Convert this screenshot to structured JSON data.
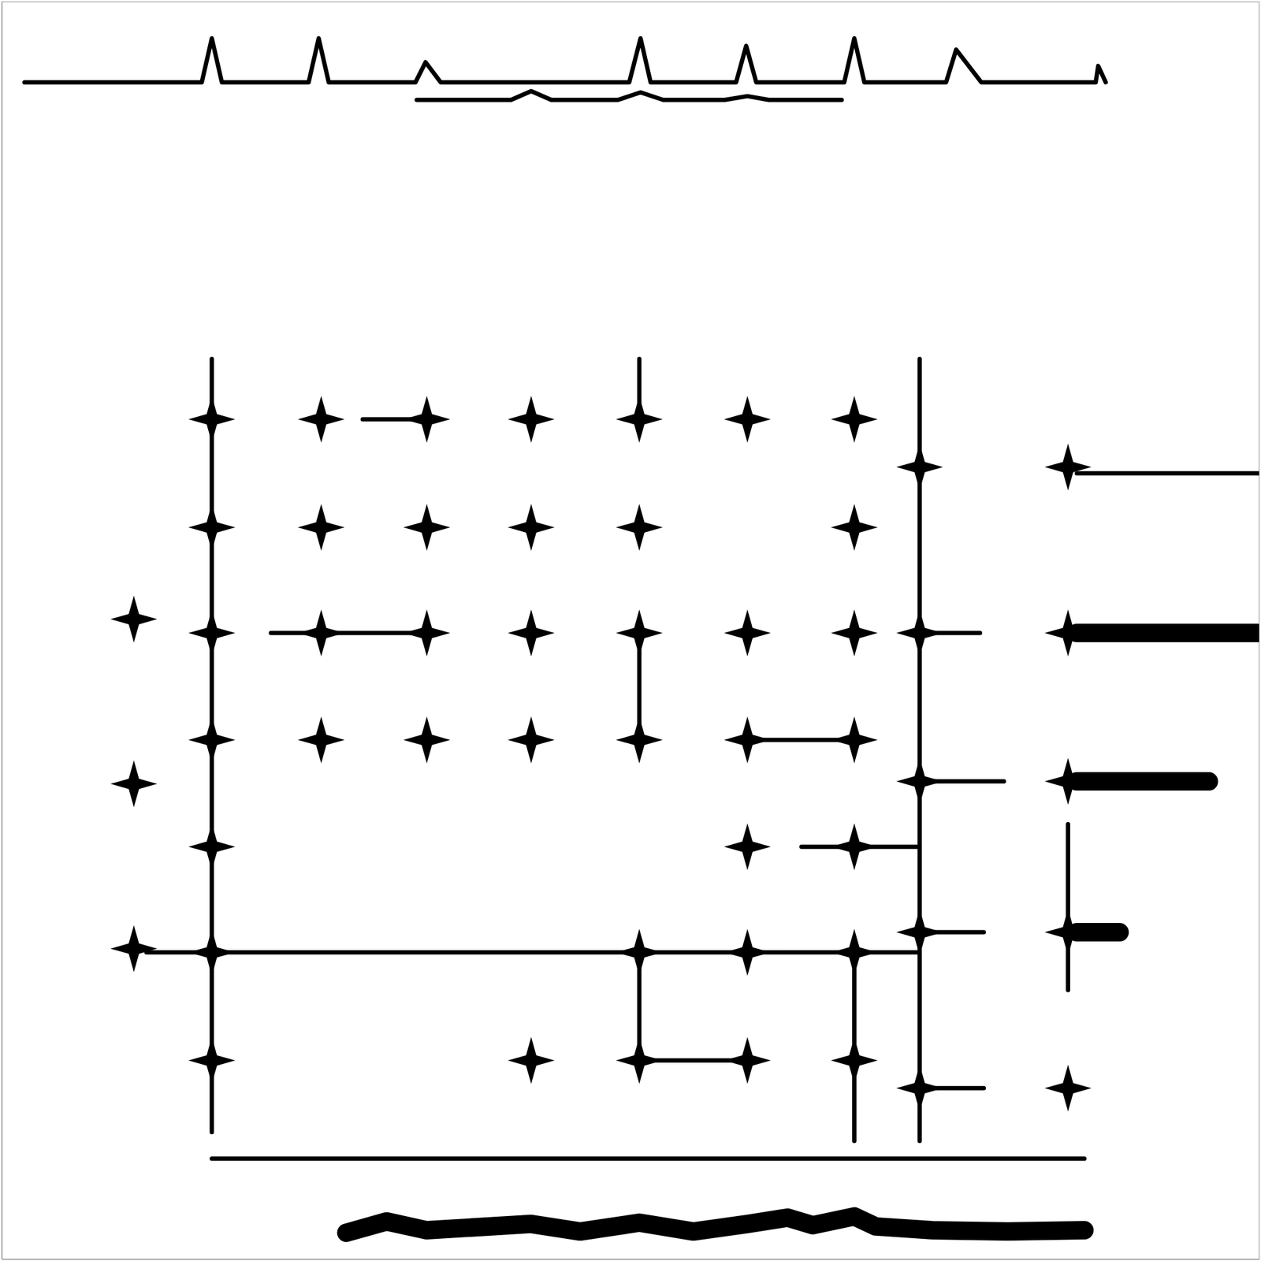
{
  "chart_data": {
    "type": "scatter",
    "xlim": [
      0,
      100
    ],
    "ylim": [
      0,
      100
    ],
    "tick_labels": false,
    "grid": false,
    "series": [
      {
        "type": "scatter",
        "marker": "star",
        "color": "#000000",
        "x": [
          16.7,
          16.7,
          16.7,
          16.7,
          16.7,
          16.7,
          16.7,
          25.4,
          25.4,
          25.4,
          25.4,
          33.8,
          33.8,
          33.8,
          33.8,
          42.1,
          42.1,
          42.1,
          42.1,
          42.1,
          50.7,
          50.7,
          50.7,
          50.7,
          50.7,
          50.7,
          59.3,
          59.3,
          59.3,
          59.3,
          59.3,
          59.3,
          67.8,
          67.8,
          67.8,
          67.8,
          67.8,
          67.8,
          67.8,
          73.0,
          73.0,
          73.0,
          73.0,
          73.0,
          84.8,
          84.8,
          84.8,
          84.8,
          84.8,
          10.5,
          10.5,
          10.5
        ],
        "values": [
          66.8,
          58.2,
          49.8,
          41.3,
          32.8,
          24.4,
          15.8,
          66.8,
          58.2,
          49.8,
          41.3,
          66.8,
          58.2,
          49.8,
          41.3,
          66.8,
          58.2,
          49.8,
          41.3,
          15.8,
          66.8,
          58.2,
          49.8,
          41.3,
          24.4,
          15.8,
          66.8,
          49.8,
          41.3,
          32.8,
          24.4,
          15.8,
          66.8,
          58.2,
          49.8,
          41.3,
          32.8,
          24.4,
          15.8,
          63.0,
          49.8,
          38.0,
          26.0,
          13.6,
          63.0,
          49.8,
          38.0,
          26.0,
          13.6,
          50.9,
          37.8,
          24.7
        ]
      },
      {
        "type": "line",
        "line_style": "solid",
        "color": "#000000",
        "x": [
          16.7,
          16.7
        ],
        "values": [
          71.6,
          10.1
        ]
      },
      {
        "type": "line",
        "line_style": "solid",
        "color": "#000000",
        "x": [
          73.0,
          73.0
        ],
        "values": [
          71.6,
          9.4
        ]
      },
      {
        "type": "line",
        "line_style": "solid",
        "color": "#000000",
        "x": [
          11.5,
          73.0
        ],
        "values": [
          24.4,
          24.4
        ]
      },
      {
        "type": "line",
        "line_style": "solid",
        "color": "#000000",
        "x": [
          50.7,
          59.3
        ],
        "values": [
          15.8,
          15.8
        ]
      },
      {
        "type": "line",
        "line_style": "solid",
        "color": "#000000",
        "x": [
          50.7,
          50.7
        ],
        "values": [
          24.4,
          15.8
        ]
      },
      {
        "type": "line",
        "line_style": "solid",
        "color": "#000000",
        "x": [
          67.8,
          67.8
        ],
        "values": [
          24.4,
          9.4
        ]
      },
      {
        "type": "line",
        "line_style": "solid",
        "color": "#000000",
        "x": [
          50.7,
          50.7
        ],
        "values": [
          49.8,
          41.3
        ]
      },
      {
        "type": "line",
        "line_style": "solid",
        "color": "#000000",
        "x": [
          50.7,
          50.7
        ],
        "values": [
          66.8,
          71.6
        ]
      },
      {
        "type": "line",
        "line_style": "solid",
        "color": "#000000",
        "x": [
          28.7,
          33.8
        ],
        "values": [
          66.8,
          66.8
        ]
      },
      {
        "type": "line",
        "line_style": "solid",
        "color": "#000000",
        "x": [
          21.4,
          33.8
        ],
        "values": [
          49.8,
          49.8
        ]
      },
      {
        "type": "line",
        "line_style": "solid",
        "color": "#000000",
        "x": [
          59.3,
          67.8
        ],
        "values": [
          41.3,
          41.3
        ]
      },
      {
        "type": "line",
        "line_style": "solid",
        "color": "#000000",
        "x": [
          63.6,
          73.0
        ],
        "values": [
          32.8,
          32.8
        ]
      },
      {
        "type": "line",
        "line_style": "solid",
        "color": "#000000",
        "x": [
          73.0,
          77.8
        ],
        "values": [
          49.8,
          49.8
        ]
      },
      {
        "type": "line",
        "line_style": "solid",
        "color": "#000000",
        "x": [
          73.0,
          79.7
        ],
        "values": [
          38.0,
          38.0
        ]
      },
      {
        "type": "line",
        "line_style": "solid",
        "color": "#000000",
        "x": [
          73.0,
          78.1
        ],
        "values": [
          26.0,
          26.0
        ]
      },
      {
        "type": "line",
        "line_style": "solid",
        "color": "#000000",
        "x": [
          73.0,
          78.1
        ],
        "values": [
          13.6,
          13.6
        ]
      },
      {
        "type": "line",
        "line_style": "solid",
        "color": "#000000",
        "x": [
          84.8,
          84.8
        ],
        "values": [
          34.6,
          21.4
        ]
      },
      {
        "type": "line",
        "line_style": "heavy",
        "color": "#000000",
        "x": [
          85.5,
          100
        ],
        "values": [
          49.8,
          49.8
        ]
      },
      {
        "type": "line",
        "line_style": "heavy",
        "color": "#000000",
        "x": [
          85.5,
          96.0
        ],
        "values": [
          38.0,
          38.0
        ]
      },
      {
        "type": "line",
        "line_style": "heavy",
        "color": "#000000",
        "x": [
          85.5,
          88.9
        ],
        "values": [
          26.0,
          26.0
        ]
      },
      {
        "type": "line",
        "line_style": "solid",
        "color": "#000000",
        "x": [
          85.5,
          100
        ],
        "values": [
          62.5,
          62.5
        ]
      },
      {
        "type": "line",
        "line_style": "solid",
        "color": "#000000",
        "x": [
          1.8,
          15.9,
          16.7,
          17.5,
          24.4,
          25.2,
          26.0,
          32.9,
          33.7,
          34.9,
          49.9,
          50.8,
          51.6,
          58.4,
          59.2,
          60.0,
          67.0,
          67.8,
          68.6,
          75.1,
          75.9,
          77.9,
          87.0,
          87.2,
          87.8
        ],
        "values": [
          93.6,
          93.6,
          97.1,
          93.6,
          93.6,
          97.1,
          93.6,
          93.6,
          95.2,
          93.6,
          93.6,
          97.1,
          93.6,
          93.6,
          96.5,
          93.6,
          93.6,
          97.1,
          93.6,
          93.6,
          96.2,
          93.6,
          93.6,
          94.9,
          93.6
        ]
      },
      {
        "type": "line",
        "line_style": "solid",
        "color": "#000000",
        "x": [
          33.0,
          40.5,
          42.1,
          43.7,
          49.0,
          50.8,
          52.6,
          57.5,
          59.3,
          61.0,
          66.8
        ],
        "values": [
          92.2,
          92.2,
          92.9,
          92.2,
          92.2,
          92.8,
          92.2,
          92.2,
          92.5,
          92.2,
          92.2
        ]
      },
      {
        "type": "line",
        "line_style": "solid",
        "color": "#000000",
        "x": [
          16.7,
          86.1
        ],
        "values": [
          8.0,
          8.0
        ]
      },
      {
        "type": "line",
        "line_style": "heavy",
        "color": "#000000",
        "x": [
          27.4,
          30.6,
          33.8,
          42.1,
          46.0,
          50.7,
          55.0,
          59.3,
          62.5,
          64.5,
          67.8,
          69.5,
          74.0,
          80.0,
          86.1
        ],
        "values": [
          2.1,
          3.0,
          2.3,
          2.8,
          2.2,
          2.9,
          2.2,
          2.8,
          3.3,
          2.7,
          3.4,
          2.6,
          2.3,
          2.2,
          2.3
        ]
      }
    ]
  }
}
